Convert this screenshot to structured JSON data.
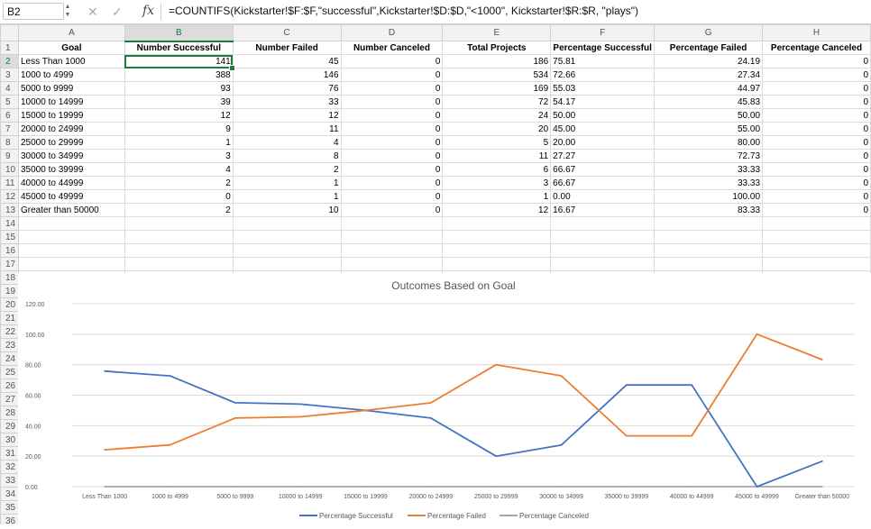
{
  "formula_bar": {
    "cell_ref": "B2",
    "cancel_icon": "close-icon",
    "enter_icon": "check-icon",
    "fx_label": "fx",
    "formula": "=COUNTIFS(Kickstarter!$F:$F,\"successful\",Kickstarter!$D:$D,\"<1000\", Kickstarter!$R:$R, \"plays\")"
  },
  "columns": [
    "A",
    "B",
    "C",
    "D",
    "E",
    "F",
    "G",
    "H"
  ],
  "selected_column": "B",
  "selected_row": "2",
  "header_row": [
    "Goal",
    "Number Successful",
    "Number Failed",
    "Number Canceled",
    "Total Projects",
    "Percentage Successful",
    "Percentage Failed",
    "Percentage Canceled"
  ],
  "rows": [
    [
      "Less Than 1000",
      "141",
      "45",
      "0",
      "186",
      "75.81",
      "24.19",
      "0"
    ],
    [
      "1000 to 4999",
      "388",
      "146",
      "0",
      "534",
      "72.66",
      "27.34",
      "0"
    ],
    [
      "5000 to 9999",
      "93",
      "76",
      "0",
      "169",
      "55.03",
      "44.97",
      "0"
    ],
    [
      "10000 to 14999",
      "39",
      "33",
      "0",
      "72",
      "54.17",
      "45.83",
      "0"
    ],
    [
      "15000 to 19999",
      "12",
      "12",
      "0",
      "24",
      "50.00",
      "50.00",
      "0"
    ],
    [
      "20000 to 24999",
      "9",
      "11",
      "0",
      "20",
      "45.00",
      "55.00",
      "0"
    ],
    [
      "25000 to 29999",
      "1",
      "4",
      "0",
      "5",
      "20.00",
      "80.00",
      "0"
    ],
    [
      "30000 to 34999",
      "3",
      "8",
      "0",
      "11",
      "27.27",
      "72.73",
      "0"
    ],
    [
      "35000 to 39999",
      "4",
      "2",
      "0",
      "6",
      "66.67",
      "33.33",
      "0"
    ],
    [
      "40000 to 44999",
      "2",
      "1",
      "0",
      "3",
      "66.67",
      "33.33",
      "0"
    ],
    [
      "45000 to 49999",
      "0",
      "1",
      "0",
      "1",
      "0.00",
      "100.00",
      "0"
    ],
    [
      "Greater than 50000",
      "2",
      "10",
      "0",
      "12",
      "16.67",
      "83.33",
      "0"
    ]
  ],
  "row_numbers": [
    "1",
    "2",
    "3",
    "4",
    "5",
    "6",
    "7",
    "8",
    "9",
    "10",
    "11",
    "12",
    "13",
    "14",
    "15",
    "16",
    "17",
    "18",
    "19",
    "20",
    "21",
    "22",
    "23",
    "24",
    "25",
    "26",
    "27",
    "28",
    "29",
    "30",
    "31",
    "32",
    "33",
    "34",
    "35",
    "36"
  ],
  "chart_data": {
    "type": "line",
    "title": "Outcomes Based on Goal",
    "xlabel": "",
    "ylabel": "",
    "categories": [
      "Less Than 1000",
      "1000 to 4999",
      "5000 to 9999",
      "10000 to 14999",
      "15000 to 19999",
      "20000 to 24999",
      "25000 to 29999",
      "30000 to 34999",
      "35000 to 39999",
      "40000 to 44999",
      "45000 to 49999",
      "Greater than 50000"
    ],
    "ylim": [
      0,
      120
    ],
    "y_ticks": [
      "0.00",
      "20.00",
      "40.00",
      "60.00",
      "80.00",
      "100.00",
      "120.00"
    ],
    "grid": true,
    "legend_position": "bottom",
    "series": [
      {
        "name": "Percentage Successful",
        "color": "#4472c4",
        "values": [
          75.81,
          72.66,
          55.03,
          54.17,
          50.0,
          45.0,
          20.0,
          27.27,
          66.67,
          66.67,
          0.0,
          16.67
        ]
      },
      {
        "name": "Percentage Failed",
        "color": "#ed7d31",
        "values": [
          24.19,
          27.34,
          44.97,
          45.83,
          50.0,
          55.0,
          80.0,
          72.73,
          33.33,
          33.33,
          100.0,
          83.33
        ]
      },
      {
        "name": "Percentage Canceled",
        "color": "#a5a5a5",
        "values": [
          0,
          0,
          0,
          0,
          0,
          0,
          0,
          0,
          0,
          0,
          0,
          0
        ]
      }
    ]
  }
}
